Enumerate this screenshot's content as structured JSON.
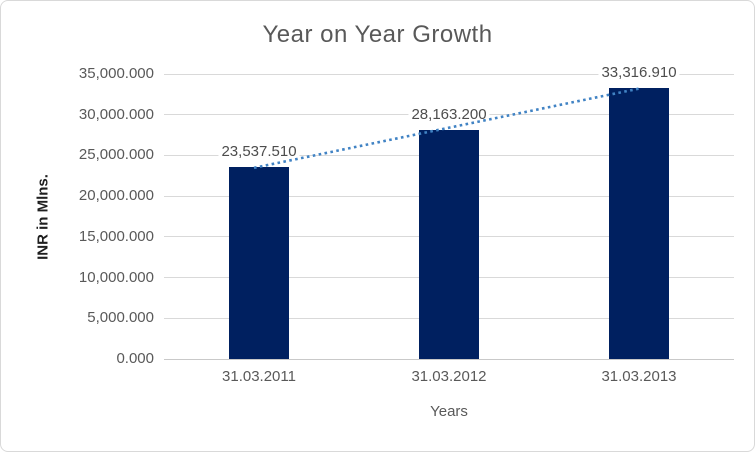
{
  "chart_data": {
    "type": "bar",
    "title": "Year on Year Growth",
    "xlabel": "Years",
    "ylabel": "INR in Mlns.",
    "categories": [
      "31.03.2011",
      "31.03.2012",
      "31.03.2013"
    ],
    "values": [
      23537.51,
      28163.2,
      33316.91
    ],
    "value_labels": [
      "23,537.510",
      "28,163.200",
      "33,316.910"
    ],
    "ylim": [
      0,
      35000
    ],
    "ytick_step": 5000,
    "ytick_labels": [
      "0.000",
      "5,000.000",
      "10,000.000",
      "15,000.000",
      "20,000.000",
      "25,000.000",
      "30,000.000",
      "35,000.000"
    ],
    "grid": true,
    "legend": false,
    "trendline": {
      "type": "linear",
      "style": "dotted"
    },
    "colors": {
      "bar": "#002060",
      "trendline": "#4183C4",
      "gridline": "#D9D9D9",
      "axis_line": "#C9C9C9",
      "title_text": "#595959",
      "tick_text": "#595959",
      "data_label_text": "#4D4D4D",
      "axis_title_text": "#1F1F1F",
      "border": "#D9D9D9",
      "background": "#FFFFFF"
    }
  }
}
